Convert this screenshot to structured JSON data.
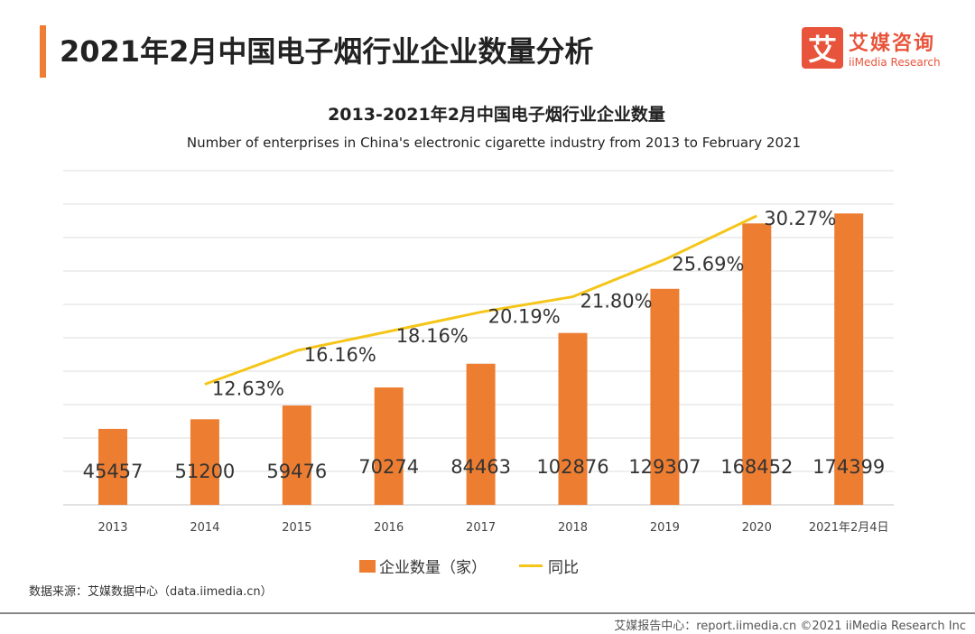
{
  "header": {
    "title": "2021年2月中国电子烟行业企业数量分析",
    "logo_mark": "艾",
    "logo_cn": "艾媒咨询",
    "logo_en": "iiMedia Research"
  },
  "chart_data": {
    "type": "bar",
    "title": "2013-2021年2月中国电子烟行业企业数量",
    "subtitle": "Number of enterprises in China's electronic cigarette industry from 2013 to February 2021",
    "categories": [
      "2013",
      "2014",
      "2015",
      "2016",
      "2017",
      "2018",
      "2019",
      "2020",
      "2021年2月4日"
    ],
    "series": [
      {
        "name": "企业数量（家）",
        "type": "bar",
        "color": "#ed7d31",
        "values": [
          45457,
          51200,
          59476,
          70274,
          84463,
          102876,
          129307,
          168452,
          174399
        ],
        "labels": [
          "45457",
          "51200",
          "59476",
          "70274",
          "84463",
          "102876",
          "129307",
          "168452",
          "174399"
        ]
      },
      {
        "name": "同比",
        "type": "line",
        "color": "#f5c518",
        "axis": "secondary",
        "values": [
          null,
          12.63,
          16.16,
          18.16,
          20.19,
          21.8,
          25.69,
          30.27,
          null
        ],
        "labels": [
          "",
          "12.63%",
          "16.16%",
          "18.16%",
          "20.19%",
          "21.80%",
          "25.69%",
          "30.27%",
          ""
        ]
      }
    ],
    "ylim": [
      0,
      200000
    ],
    "y2lim": [
      0,
      35
    ],
    "grid": true,
    "legend": "bottom"
  },
  "footer": {
    "source": "数据来源：艾媒数据中心（data.iimedia.cn）",
    "copyright": "艾媒报告中心：report.iimedia.cn  ©2021  iiMedia Research  Inc"
  }
}
